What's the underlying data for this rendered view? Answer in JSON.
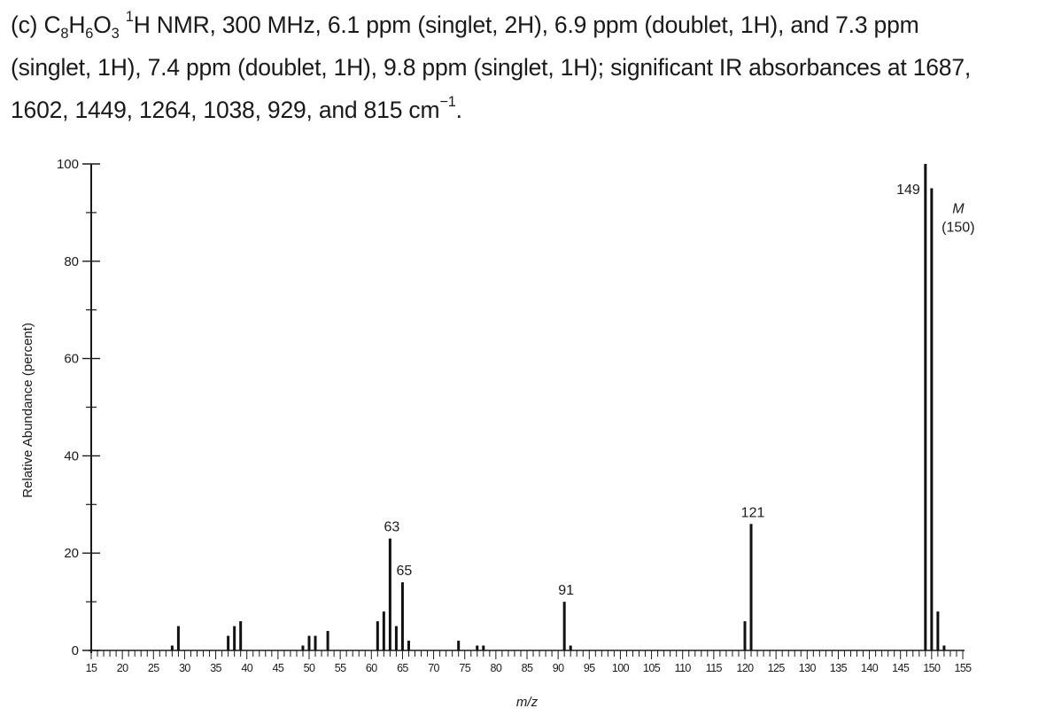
{
  "problem": {
    "line1": {
      "prefix": "(c) C",
      "c_count": "8",
      "h": "H",
      "h_count": "6",
      "o": "O",
      "o_count": "3",
      "nmr_sup": "1",
      "rest": "H NMR, 300 MHz, 6.1 ppm (singlet, 2H), 6.9 ppm (doublet, 1H), and 7.3 ppm"
    },
    "line2": "(singlet, 1H), 7.4 ppm (doublet, 1H), 9.8 ppm (singlet, 1H); significant IR absorbances at 1687,",
    "line3": {
      "text": "1602, 1449, 1264, 1038, 929, and 815 cm",
      "sup": "−1",
      "end": "."
    }
  },
  "chart_data": {
    "type": "bar",
    "xlabel": "m/z",
    "ylabel": "Relative Abundance (percent)",
    "xlim": [
      15,
      155
    ],
    "ylim": [
      0,
      100
    ],
    "x_ticks": [
      15,
      20,
      25,
      30,
      35,
      40,
      45,
      50,
      55,
      60,
      65,
      70,
      75,
      80,
      85,
      90,
      95,
      100,
      105,
      110,
      115,
      120,
      125,
      130,
      135,
      140,
      145,
      150,
      155
    ],
    "y_ticks": [
      0,
      20,
      40,
      60,
      80,
      100
    ],
    "grid": false,
    "peaks": [
      {
        "x": 28,
        "y": 1
      },
      {
        "x": 29,
        "y": 5
      },
      {
        "x": 37,
        "y": 3
      },
      {
        "x": 38,
        "y": 5
      },
      {
        "x": 39,
        "y": 6
      },
      {
        "x": 49,
        "y": 1
      },
      {
        "x": 50,
        "y": 3
      },
      {
        "x": 51,
        "y": 3
      },
      {
        "x": 53,
        "y": 4
      },
      {
        "x": 61,
        "y": 6
      },
      {
        "x": 62,
        "y": 8
      },
      {
        "x": 63,
        "y": 23
      },
      {
        "x": 64,
        "y": 5
      },
      {
        "x": 65,
        "y": 14
      },
      {
        "x": 66,
        "y": 2
      },
      {
        "x": 74,
        "y": 2
      },
      {
        "x": 77,
        "y": 1
      },
      {
        "x": 78,
        "y": 1
      },
      {
        "x": 91,
        "y": 10
      },
      {
        "x": 92,
        "y": 1
      },
      {
        "x": 120,
        "y": 6
      },
      {
        "x": 121,
        "y": 26
      },
      {
        "x": 149,
        "y": 100
      },
      {
        "x": 150,
        "y": 95
      },
      {
        "x": 151,
        "y": 8
      },
      {
        "x": 152,
        "y": 1
      }
    ],
    "annotations": [
      {
        "x": 63,
        "y": 23,
        "label": "63",
        "position": "above"
      },
      {
        "x": 65,
        "y": 14,
        "label": "65",
        "position": "above"
      },
      {
        "x": 91,
        "y": 10,
        "label": "91",
        "position": "above"
      },
      {
        "x": 121,
        "y": 26,
        "label": "121",
        "position": "above"
      },
      {
        "x": 149,
        "y": 100,
        "label": "149",
        "position": "left"
      },
      {
        "x": 150,
        "y": 95,
        "label": "M",
        "sublabel": "(150)",
        "position": "right"
      }
    ]
  }
}
